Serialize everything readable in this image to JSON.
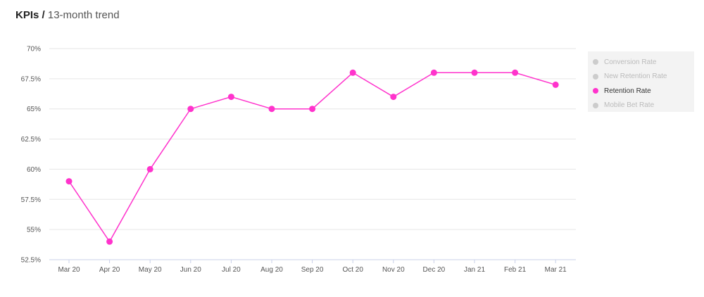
{
  "header": {
    "title_bold": "KPIs /",
    "title_rest": "13-month trend"
  },
  "colors": {
    "active": "#ff33cc",
    "inactive": "#cccccc",
    "active_text": "#333333",
    "inactive_text": "#bbbbbb",
    "grid": "#e6e6e6",
    "axis": "#c8d0e8"
  },
  "legend": {
    "items": [
      {
        "label": "Conversion Rate",
        "active": false
      },
      {
        "label": "New Retention Rate",
        "active": false
      },
      {
        "label": "Retention Rate",
        "active": true
      },
      {
        "label": "Mobile Bet Rate",
        "active": false
      }
    ]
  },
  "chart_data": {
    "type": "line",
    "categories": [
      "Mar 20",
      "Apr 20",
      "May 20",
      "Jun 20",
      "Jul 20",
      "Aug 20",
      "Sep 20",
      "Oct 20",
      "Nov 20",
      "Dec 20",
      "Jan 21",
      "Feb 21",
      "Mar 21"
    ],
    "series": [
      {
        "name": "Retention Rate",
        "values": [
          59,
          54,
          60,
          65,
          66,
          65,
          65,
          68,
          66,
          68,
          68,
          68,
          67
        ]
      }
    ],
    "yticks": [
      52.5,
      55,
      57.5,
      60,
      62.5,
      65,
      67.5,
      70
    ],
    "ytick_labels": [
      "52.5%",
      "55%",
      "57.5%",
      "60%",
      "62.5%",
      "65%",
      "67.5%",
      "70%"
    ],
    "ylim": [
      52.5,
      70
    ],
    "grid": true,
    "legend_position": "right"
  }
}
